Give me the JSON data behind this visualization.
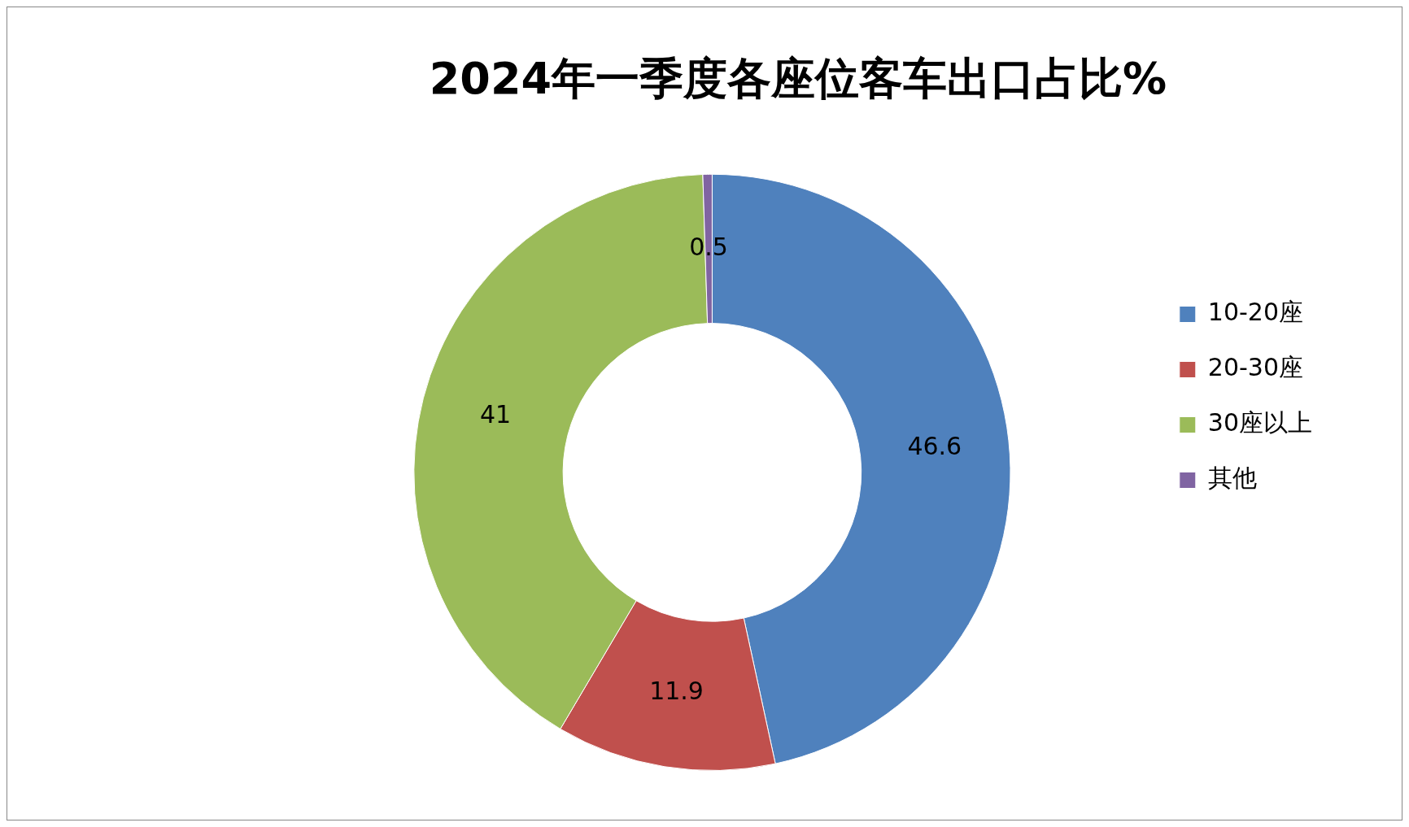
{
  "chart_data": {
    "type": "donut",
    "title": "2024年一季度各座位客车出口占比%",
    "categories": [
      "10-20座",
      "20-30座",
      "30座以上",
      "其他"
    ],
    "values": [
      46.6,
      11.9,
      41,
      0.5
    ],
    "colors": [
      "#4f81bd",
      "#c0504d",
      "#9bbb59",
      "#8064a2"
    ],
    "data_labels": true,
    "legend": "right"
  }
}
